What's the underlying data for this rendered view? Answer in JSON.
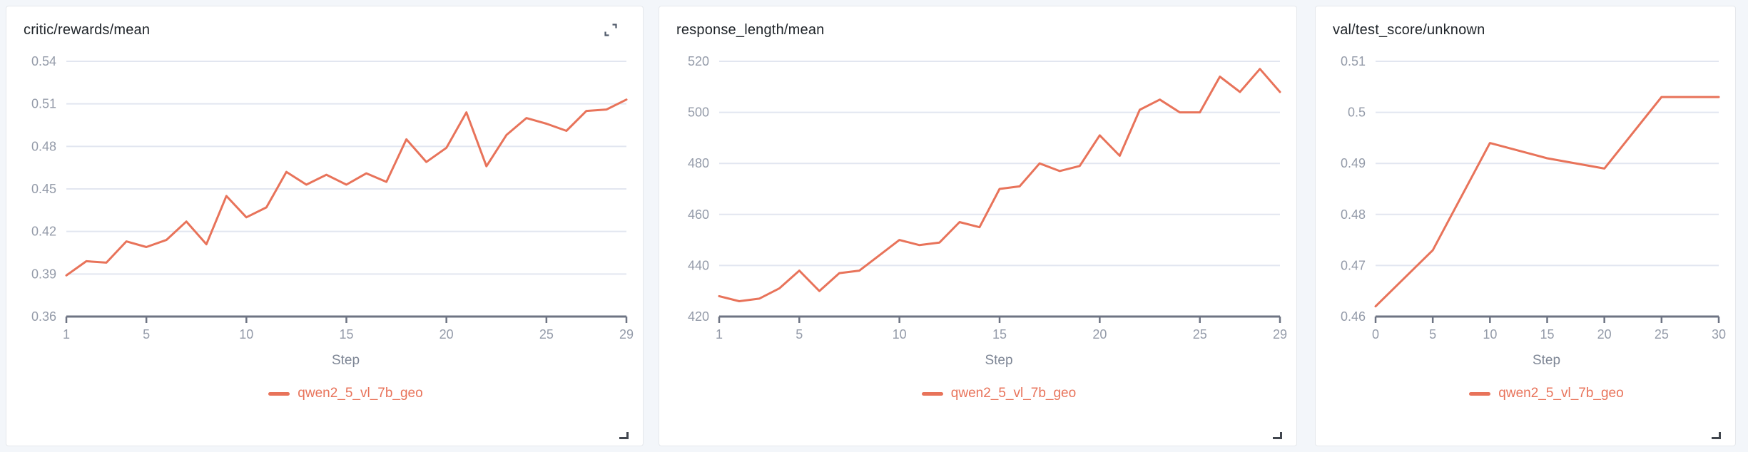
{
  "page": {
    "background_color": "#f3f6fa",
    "panel_background": "#ffffff",
    "grid_color": "#e2e6f0",
    "axis_color": "#6e7483",
    "tick_label_color": "#949ba9",
    "title_color": "#1f2429",
    "accent_color": "#e8735a"
  },
  "icons": {
    "expand": "expand-icon",
    "resize": "resize-handle-icon"
  },
  "chart_data": [
    {
      "type": "line",
      "title": "critic/rewards/mean",
      "xlabel": "Step",
      "grid": true,
      "legend_position": "bottom",
      "xlim": [
        1,
        29
      ],
      "ylim": [
        0.36,
        0.54
      ],
      "xtick_values": [
        1,
        5,
        10,
        15,
        20,
        25,
        29
      ],
      "xtick_labels": [
        "1",
        "5",
        "10",
        "15",
        "20",
        "25",
        "29"
      ],
      "ytick_values": [
        0.54,
        0.51,
        0.48,
        0.45,
        0.42,
        0.39,
        0.36
      ],
      "ytick_labels": [
        "0.54",
        "0.51",
        "0.48",
        "0.45",
        "0.42",
        "0.39",
        "0.36"
      ],
      "series": [
        {
          "name": "qwen2_5_vl_7b_geo",
          "color": "#e8735a",
          "x": [
            1,
            2,
            3,
            4,
            5,
            6,
            7,
            8,
            9,
            10,
            11,
            12,
            13,
            14,
            15,
            16,
            17,
            18,
            19,
            20,
            21,
            22,
            23,
            24,
            25,
            26,
            27,
            28,
            29
          ],
          "values": [
            0.389,
            0.399,
            0.398,
            0.413,
            0.409,
            0.414,
            0.427,
            0.411,
            0.445,
            0.43,
            0.437,
            0.462,
            0.453,
            0.46,
            0.453,
            0.461,
            0.455,
            0.485,
            0.469,
            0.479,
            0.504,
            0.466,
            0.488,
            0.5,
            0.496,
            0.491,
            0.505,
            0.506,
            0.513
          ]
        }
      ]
    },
    {
      "type": "line",
      "title": "response_length/mean",
      "xlabel": "Step",
      "grid": true,
      "legend_position": "bottom",
      "xlim": [
        1,
        29
      ],
      "ylim": [
        420,
        520
      ],
      "xtick_values": [
        1,
        5,
        10,
        15,
        20,
        25,
        29
      ],
      "xtick_labels": [
        "1",
        "5",
        "10",
        "15",
        "20",
        "25",
        "29"
      ],
      "ytick_values": [
        520,
        500,
        480,
        460,
        440,
        420
      ],
      "ytick_labels": [
        "520",
        "500",
        "480",
        "460",
        "440",
        "420"
      ],
      "series": [
        {
          "name": "qwen2_5_vl_7b_geo",
          "color": "#e8735a",
          "x": [
            1,
            2,
            3,
            4,
            5,
            6,
            7,
            8,
            9,
            10,
            11,
            12,
            13,
            14,
            15,
            16,
            17,
            18,
            19,
            20,
            21,
            22,
            23,
            24,
            25,
            26,
            27,
            28,
            29
          ],
          "values": [
            428,
            426,
            427,
            431,
            438,
            430,
            437,
            438,
            444,
            450,
            448,
            449,
            457,
            455,
            470,
            471,
            480,
            477,
            479,
            491,
            483,
            501,
            505,
            500,
            500,
            514,
            508,
            517,
            508
          ]
        }
      ]
    },
    {
      "type": "line",
      "title": "val/test_score/unknown",
      "xlabel": "Step",
      "grid": true,
      "legend_position": "bottom",
      "xlim": [
        0,
        30
      ],
      "ylim": [
        0.46,
        0.51
      ],
      "xtick_values": [
        0,
        5,
        10,
        15,
        20,
        25,
        30
      ],
      "xtick_labels": [
        "0",
        "5",
        "10",
        "15",
        "20",
        "25",
        "30"
      ],
      "ytick_values": [
        0.51,
        0.5,
        0.49,
        0.48,
        0.47,
        0.46
      ],
      "ytick_labels": [
        "0.51",
        "0.5",
        "0.49",
        "0.48",
        "0.47",
        "0.46"
      ],
      "series": [
        {
          "name": "qwen2_5_vl_7b_geo",
          "color": "#e8735a",
          "x": [
            0,
            5,
            10,
            15,
            20,
            25,
            30
          ],
          "values": [
            0.462,
            0.473,
            0.494,
            0.491,
            0.489,
            0.503,
            0.503
          ]
        }
      ]
    }
  ]
}
